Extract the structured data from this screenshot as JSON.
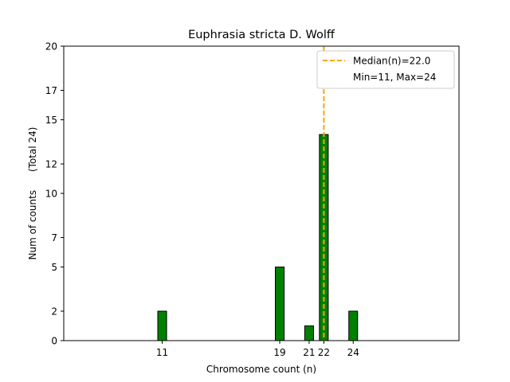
{
  "chart_data": {
    "type": "bar",
    "title": "Euphrasia stricta D. Wolff",
    "xlabel": "Chromosome count (n)",
    "ylabel": "Num of counts      (Total 24)",
    "xlim": [
      4.3,
      31.2
    ],
    "ylim": [
      0,
      20
    ],
    "xticks": [
      11,
      19,
      21,
      22,
      24
    ],
    "yticks": [
      0,
      2,
      5,
      7,
      10,
      12,
      15,
      17,
      20
    ],
    "bar_width": 0.6,
    "bars": [
      {
        "x": 11,
        "value": 2
      },
      {
        "x": 19,
        "value": 5
      },
      {
        "x": 21,
        "value": 1
      },
      {
        "x": 22,
        "value": 14
      },
      {
        "x": 24,
        "value": 2
      }
    ],
    "baseline_range": [
      4.3,
      24.6
    ],
    "median": 22.0,
    "legend": {
      "position": "top-right",
      "entries": [
        "Median(n)=22.0",
        "Min=11, Max=24"
      ]
    },
    "colors": {
      "bar": "#008000",
      "bar_edge": "#000000",
      "median_line": "#FFA500"
    }
  }
}
